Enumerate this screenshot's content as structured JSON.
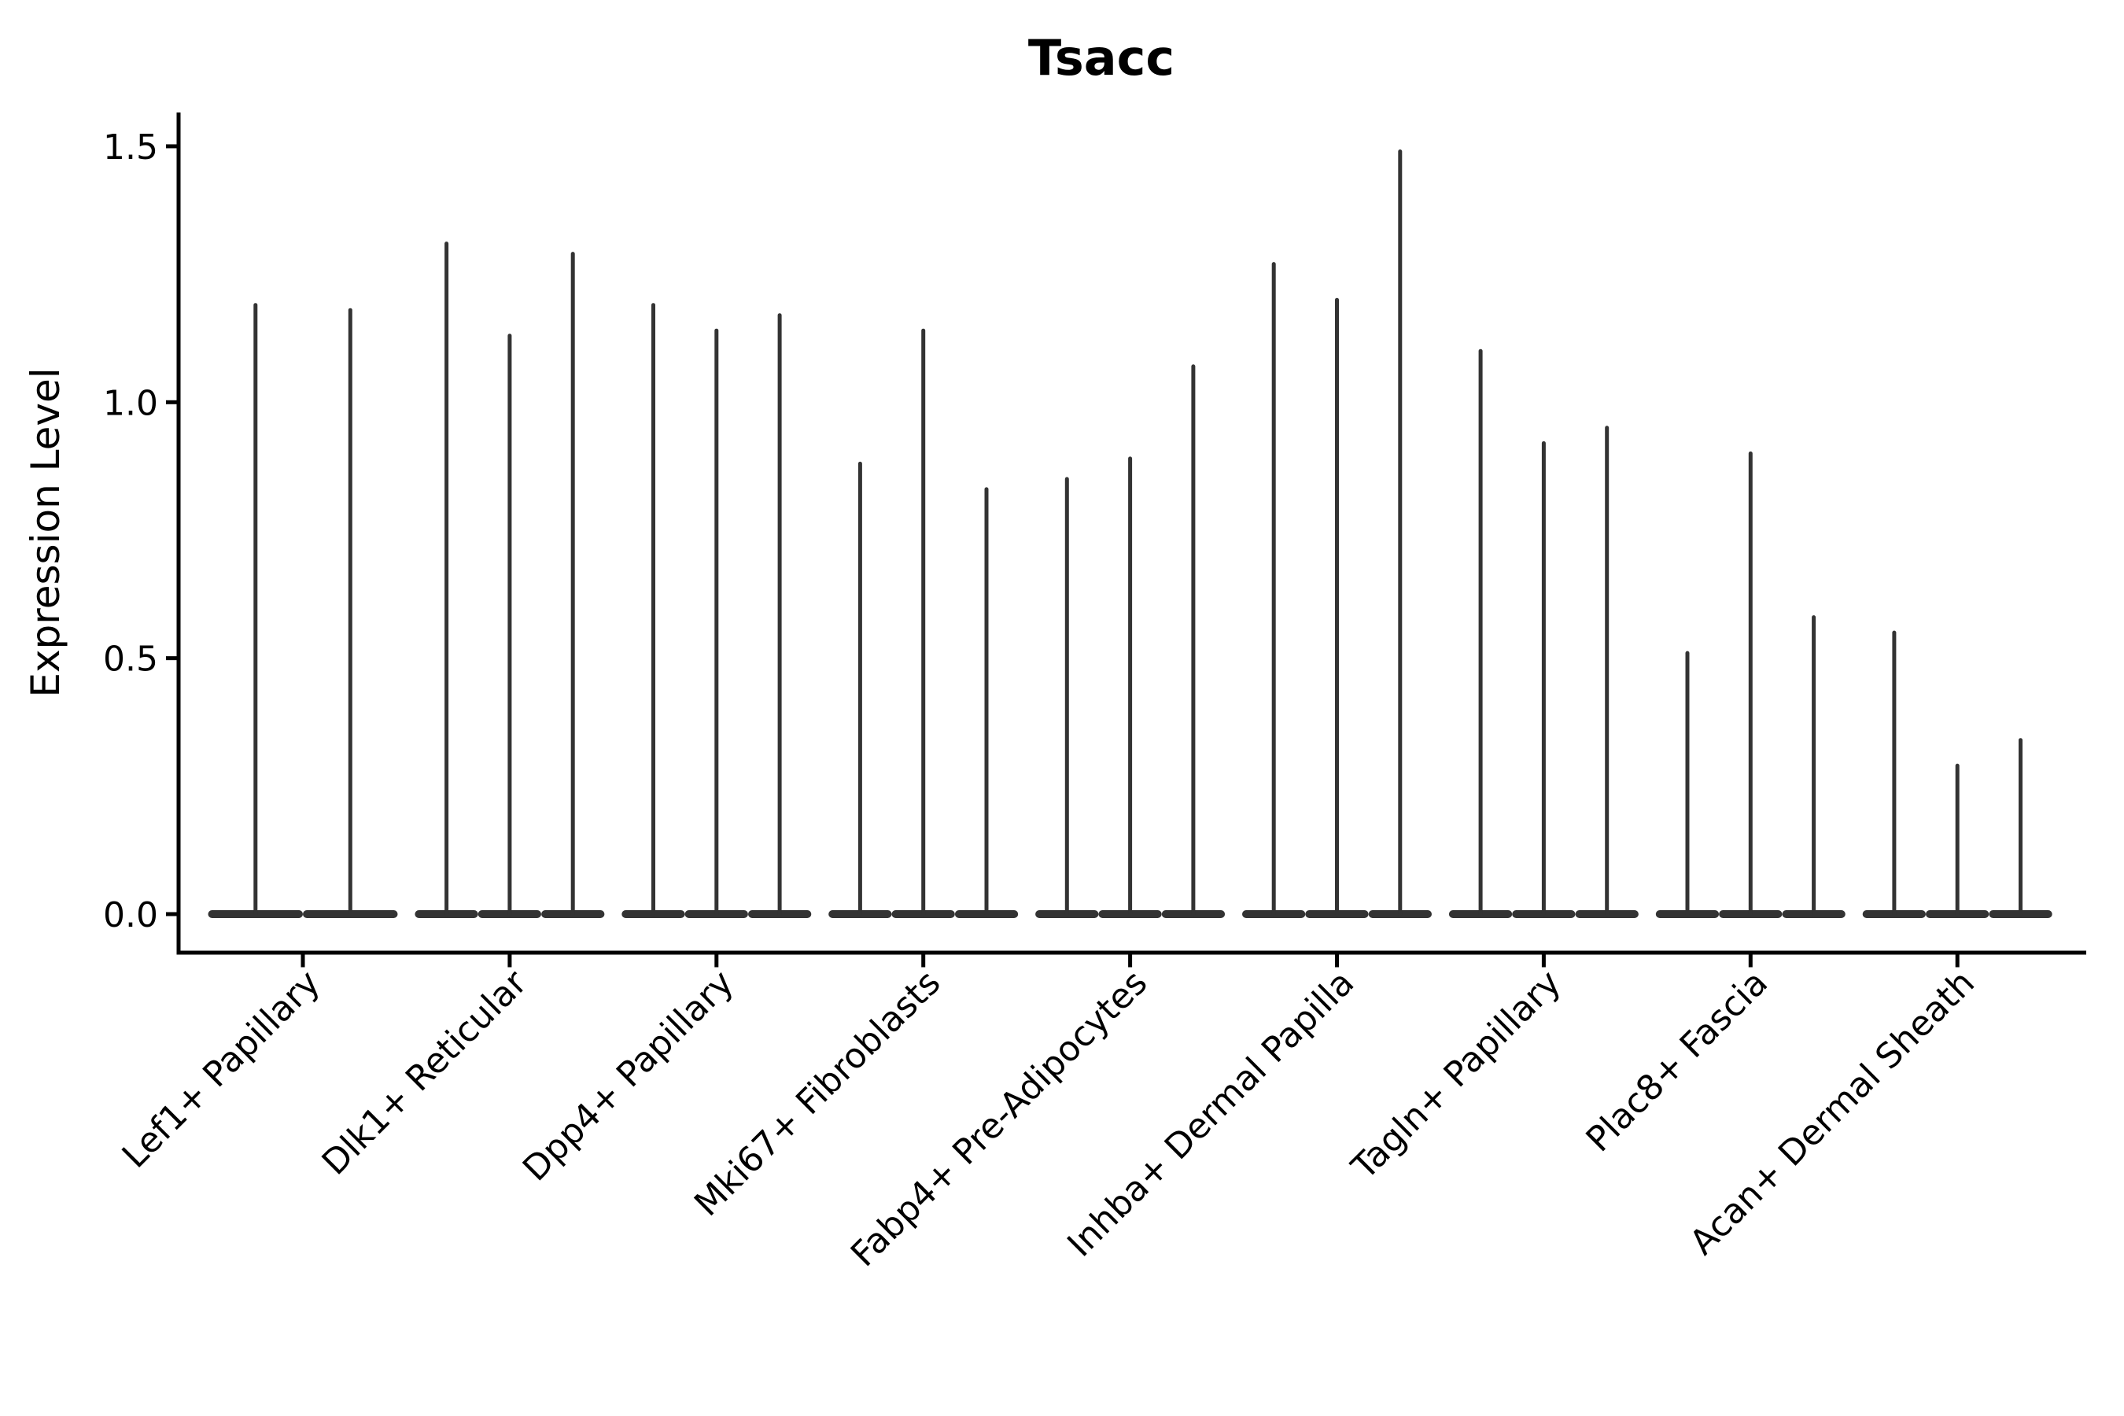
{
  "chart_data": {
    "type": "violin",
    "title": "Tsacc",
    "xlabel": "",
    "ylabel": "Expression Level",
    "ylim": [
      -0.075,
      1.57
    ],
    "yticks": [
      0.0,
      0.5,
      1.0,
      1.5
    ],
    "ytick_labels": [
      "0.0",
      "0.5",
      "1.0",
      "1.5"
    ],
    "grid": false,
    "legend": "none",
    "violin_style": "flat dense base at 0 with thin spike to max value",
    "categories": [
      "Lef1+ Papillary",
      "Dlk1+ Reticular",
      "Dpp4+ Papillary",
      "Mki67+ Fibroblasts",
      "Fabp4+ Pre-Adipocytes",
      "Inhba+ Dermal Papilla",
      "Tagln+ Papillary",
      "Plac8+ Fascia",
      "Acan+ Dermal Sheath"
    ],
    "groups": [
      {
        "label": "Lef1+ Papillary",
        "spike_maxima": [
          1.19,
          1.18
        ]
      },
      {
        "label": "Dlk1+ Reticular",
        "spike_maxima": [
          1.31,
          1.13,
          1.29
        ]
      },
      {
        "label": "Dpp4+ Papillary",
        "spike_maxima": [
          1.19,
          1.14,
          1.17
        ]
      },
      {
        "label": "Mki67+ Fibroblasts",
        "spike_maxima": [
          0.88,
          1.14,
          0.83
        ]
      },
      {
        "label": "Fabp4+ Pre-Adipocytes",
        "spike_maxima": [
          0.85,
          0.89,
          1.07
        ]
      },
      {
        "label": "Inhba+ Dermal Papilla",
        "spike_maxima": [
          1.27,
          1.2,
          1.49
        ]
      },
      {
        "label": "Tagln+ Papillary",
        "spike_maxima": [
          1.1,
          0.92,
          0.95
        ]
      },
      {
        "label": "Plac8+ Fascia",
        "spike_maxima": [
          0.51,
          0.9,
          0.58
        ]
      },
      {
        "label": "Acan+ Dermal Sheath",
        "spike_maxima": [
          0.55,
          0.29,
          0.34
        ]
      }
    ],
    "colors": {
      "violin": "#333333",
      "axis": "#000000",
      "text": "#000000",
      "background": "#ffffff"
    }
  }
}
